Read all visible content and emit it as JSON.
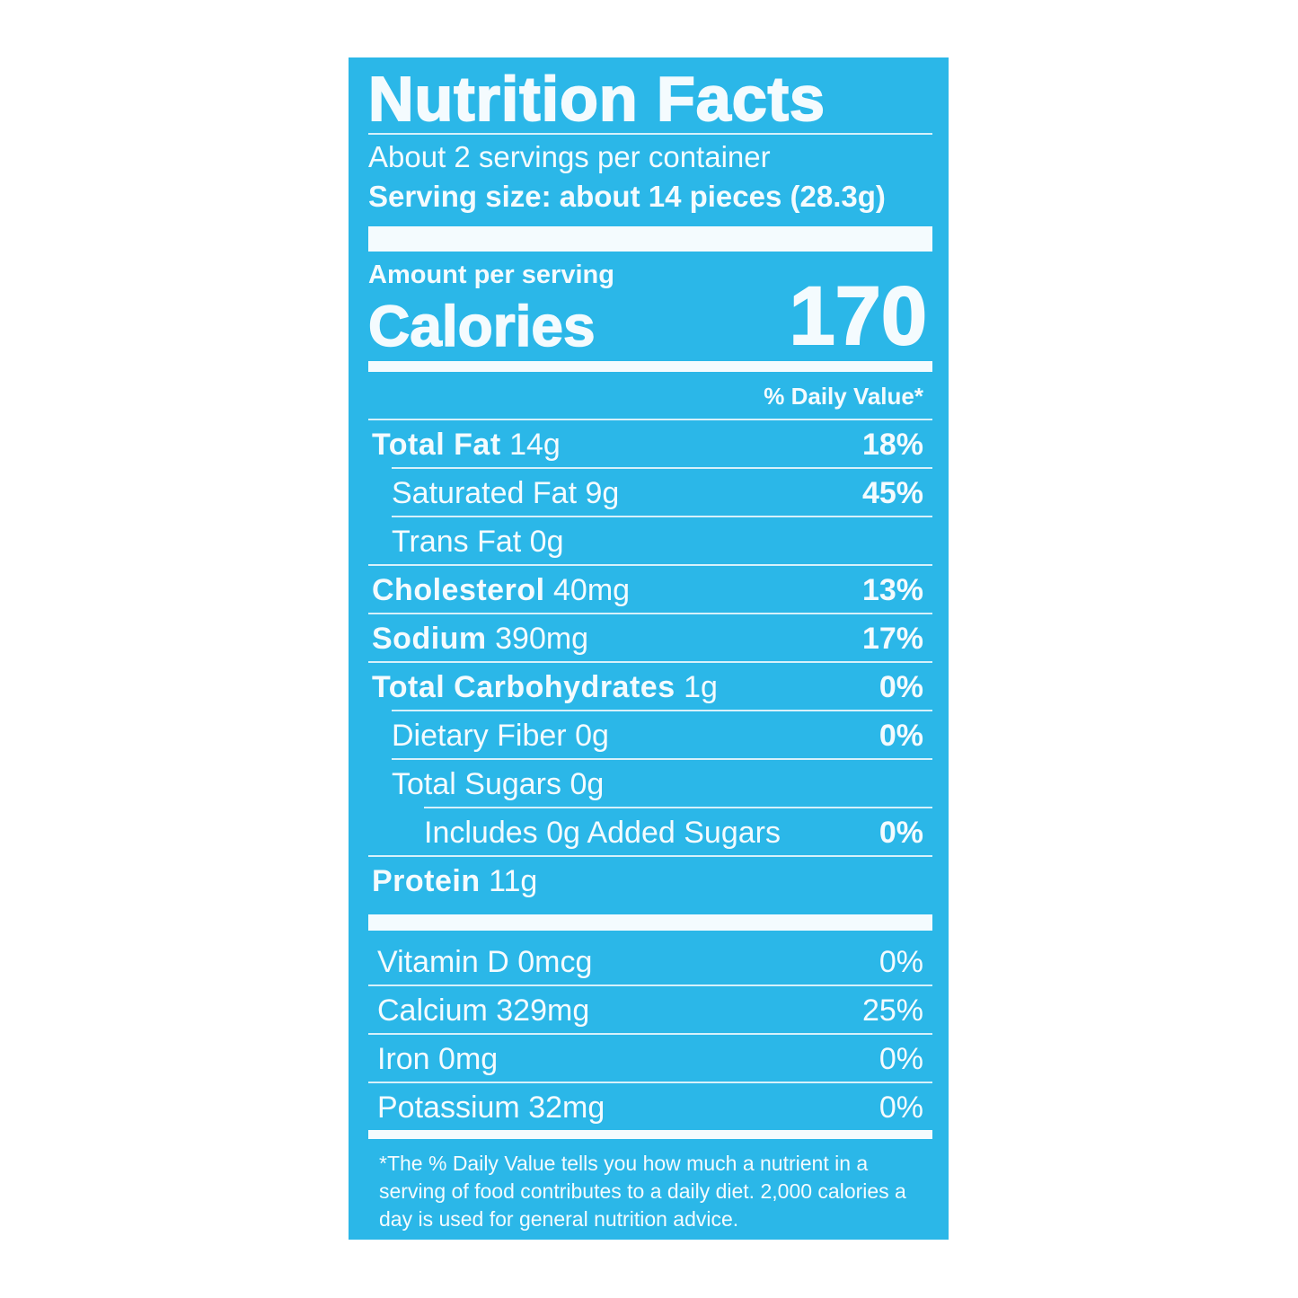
{
  "label": {
    "title": "Nutrition Facts",
    "servings_per_container": "About 2 servings per container",
    "serving_size": "Serving size: about 14 pieces (28.3g)",
    "amount_per_serving": "Amount per serving",
    "calories_label": "Calories",
    "calories_value": "170",
    "daily_value_header": "% Daily Value*",
    "nutrients": [
      {
        "name": "Total Fat",
        "amount": "14g",
        "dv": "18%",
        "bold": true,
        "indent": 0
      },
      {
        "name": "Saturated Fat",
        "amount": "9g",
        "dv": "45%",
        "bold": false,
        "indent": 1
      },
      {
        "name": "Trans Fat",
        "amount": "0g",
        "dv": "",
        "bold": false,
        "indent": 1
      },
      {
        "name": "Cholesterol",
        "amount": "40mg",
        "dv": "13%",
        "bold": true,
        "indent": 0
      },
      {
        "name": "Sodium",
        "amount": "390mg",
        "dv": "17%",
        "bold": true,
        "indent": 0
      },
      {
        "name": "Total Carbohydrates",
        "amount": "1g",
        "dv": "0%",
        "bold": true,
        "indent": 0
      },
      {
        "name": "Dietary Fiber",
        "amount": "0g",
        "dv": "0%",
        "bold": false,
        "indent": 1
      },
      {
        "name": "Total Sugars",
        "amount": "0g",
        "dv": "",
        "bold": false,
        "indent": 1
      },
      {
        "name": "Includes 0g Added Sugars",
        "amount": "",
        "dv": "0%",
        "bold": false,
        "indent": 2
      },
      {
        "name": "Protein",
        "amount": "11g",
        "dv": "",
        "bold": true,
        "indent": 0
      }
    ],
    "vitamins": [
      {
        "name": "Vitamin D",
        "amount": "0mcg",
        "dv": "0%"
      },
      {
        "name": "Calcium",
        "amount": "329mg",
        "dv": "25%"
      },
      {
        "name": "Iron",
        "amount": "0mg",
        "dv": "0%"
      },
      {
        "name": "Potassium",
        "amount": "32mg",
        "dv": "0%"
      }
    ],
    "footnote": "*The % Daily Value tells you how much a nutrient in a serving of food contributes to a daily diet. 2,000 calories a day is used for general nutrition advice.",
    "colors": {
      "background": "#2bb7e8",
      "text": "#f4fbfe"
    }
  }
}
